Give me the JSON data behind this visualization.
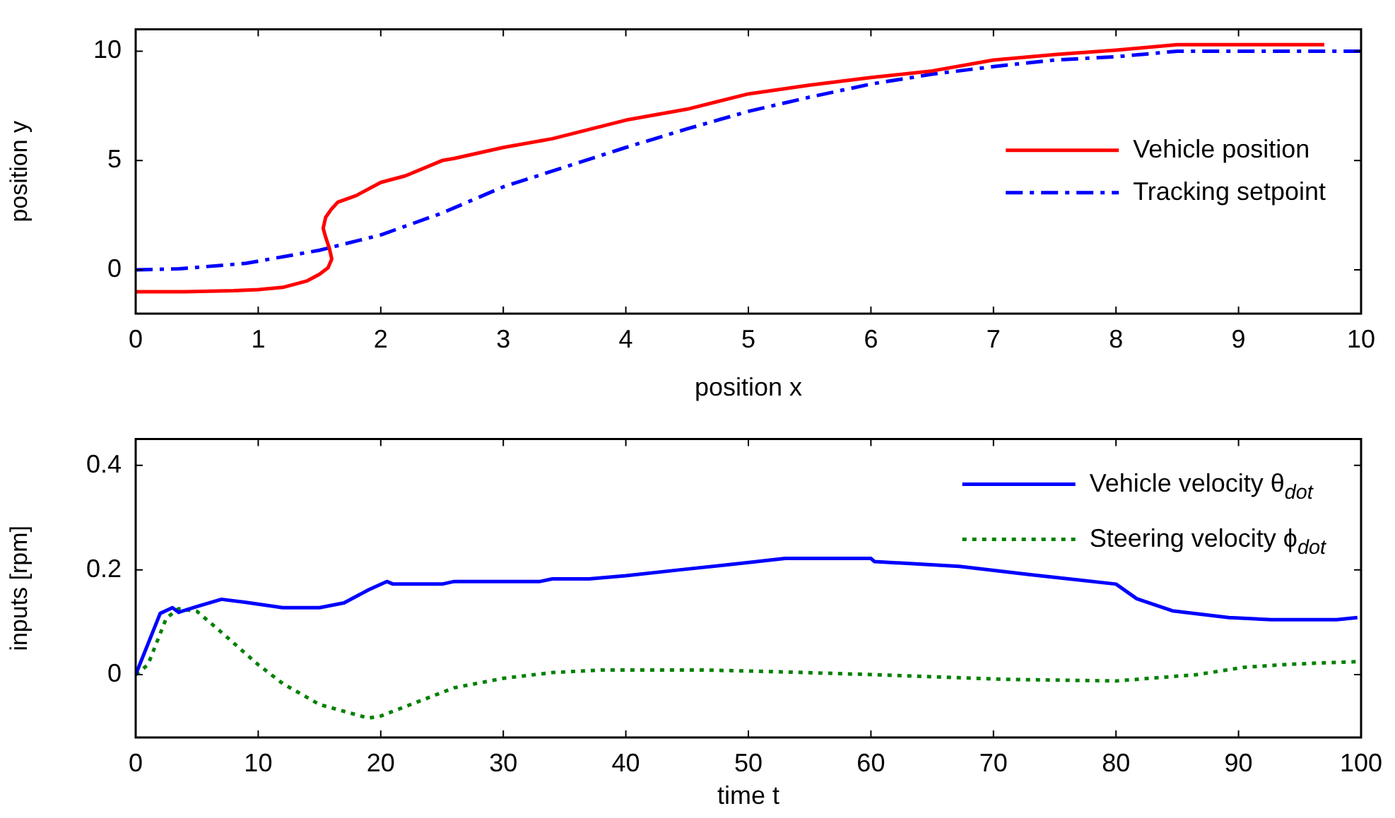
{
  "chart_data": [
    {
      "type": "line",
      "xlabel": "position x",
      "ylabel": "position y",
      "xlim": [
        0,
        10
      ],
      "ylim": [
        -2,
        11
      ],
      "xticks": [
        0,
        1,
        2,
        3,
        4,
        5,
        6,
        7,
        8,
        9,
        10
      ],
      "yticks": [
        0,
        5,
        10
      ],
      "legend": "right",
      "series": [
        {
          "name": "Vehicle position",
          "color": "#ff0000",
          "line_style": "solid",
          "x": [
            0,
            0.4,
            0.8,
            1.0,
            1.2,
            1.4,
            1.5,
            1.57,
            1.6,
            1.58,
            1.55,
            1.53,
            1.55,
            1.6,
            1.65,
            1.8,
            2.0,
            2.2,
            2.5,
            2.6,
            3.0,
            3.4,
            4.0,
            4.5,
            5.0,
            5.5,
            6.0,
            6.5,
            7.0,
            7.5,
            8.0,
            8.5,
            9.0,
            9.7
          ],
          "values": [
            -1.0,
            -1.0,
            -0.95,
            -0.9,
            -0.8,
            -0.5,
            -0.2,
            0.1,
            0.5,
            1.0,
            1.5,
            1.9,
            2.4,
            2.8,
            3.1,
            3.4,
            4.0,
            4.3,
            5.0,
            5.1,
            5.6,
            6.0,
            6.85,
            7.35,
            8.05,
            8.45,
            8.8,
            9.1,
            9.6,
            9.85,
            10.05,
            10.3,
            10.3,
            10.3
          ]
        },
        {
          "name": "Tracking setpoint",
          "color": "#0000ff",
          "line_style": "dashed",
          "x": [
            0,
            0.35,
            0.9,
            1.5,
            2.0,
            2.5,
            3.0,
            3.5,
            4.0,
            4.5,
            5.0,
            5.5,
            6.0,
            6.5,
            7.0,
            7.5,
            8.0,
            8.5,
            9.0,
            10
          ],
          "values": [
            0,
            0.05,
            0.3,
            0.9,
            1.6,
            2.6,
            3.8,
            4.7,
            5.6,
            6.45,
            7.25,
            7.9,
            8.5,
            8.95,
            9.3,
            9.6,
            9.75,
            10.0,
            10.0,
            10.0
          ]
        }
      ]
    },
    {
      "type": "line",
      "xlabel": "time t",
      "ylabel": "inputs [rpm]",
      "xlim": [
        0,
        100
      ],
      "ylim": [
        -0.12,
        0.45
      ],
      "xticks": [
        0,
        10,
        20,
        30,
        40,
        50,
        60,
        70,
        80,
        90,
        100
      ],
      "yticks": [
        0,
        0.2,
        0.4
      ],
      "legend": "top right",
      "series": [
        {
          "name": "Vehicle velocity θ$_{dot}$",
          "color": "#0000ff",
          "line_style": "solid",
          "x": [
            0,
            2,
            3,
            3.5,
            5,
            7,
            9,
            12,
            15,
            17,
            19,
            20.5,
            21,
            25,
            26,
            33,
            34,
            37,
            40,
            44.3,
            49.9,
            53,
            60,
            60.3,
            67.2,
            73,
            80,
            81.7,
            84.6,
            89.2,
            92.7,
            98,
            99.7
          ],
          "values": [
            0,
            0.117,
            0.128,
            0.119,
            0.13,
            0.144,
            0.138,
            0.128,
            0.128,
            0.137,
            0.162,
            0.178,
            0.173,
            0.173,
            0.178,
            0.178,
            0.183,
            0.183,
            0.189,
            0.2,
            0.214,
            0.222,
            0.222,
            0.216,
            0.207,
            0.191,
            0.173,
            0.145,
            0.122,
            0.109,
            0.105,
            0.105,
            0.109
          ]
        },
        {
          "name": "Steering velocity ϕ$_{dot}$",
          "color": "#008000",
          "line_style": "dotted",
          "x": [
            0,
            1,
            2.5,
            3.5,
            5,
            7,
            10,
            12,
            15,
            19,
            20,
            23,
            26,
            30,
            34,
            38,
            46,
            51.7,
            60.3,
            71,
            80,
            86.6,
            90.4,
            94.3,
            99.7
          ],
          "values": [
            0,
            0.019,
            0.108,
            0.126,
            0.121,
            0.081,
            0.019,
            -0.017,
            -0.057,
            -0.083,
            -0.079,
            -0.052,
            -0.025,
            -0.007,
            0.004,
            0.009,
            0.009,
            0.006,
            0.0,
            -0.009,
            -0.012,
            0.0,
            0.014,
            0.02,
            0.025
          ]
        }
      ]
    }
  ]
}
